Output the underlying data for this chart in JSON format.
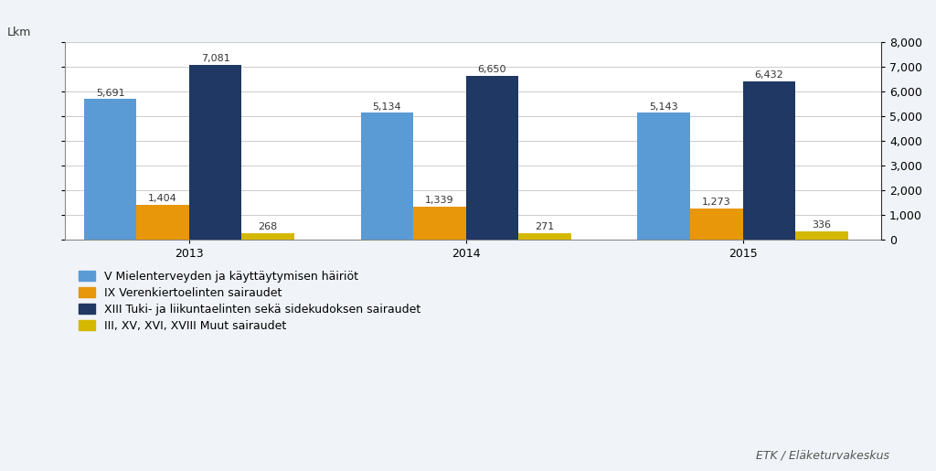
{
  "years": [
    "2013",
    "2014",
    "2015"
  ],
  "series": [
    {
      "label": "V Mielenterveyden ja käyttäytymisen häiriöt",
      "color": "#5B9BD5",
      "values": [
        5691,
        5134,
        5143
      ]
    },
    {
      "label": "IX Verenkiertoelinten sairaudet",
      "color": "#E8960A",
      "values": [
        1404,
        1339,
        1273
      ]
    },
    {
      "label": "XIII Tuki- ja liikuntaelinten sekä sidekudoksen sairaudet",
      "color": "#1F3864",
      "values": [
        7081,
        6650,
        6432
      ]
    },
    {
      "label": "III, XV, XVI, XVIII Muut sairaudet",
      "color": "#D4B800",
      "values": [
        268,
        271,
        336
      ]
    }
  ],
  "ylim": [
    0,
    8000
  ],
  "yticks": [
    0,
    1000,
    2000,
    3000,
    4000,
    5000,
    6000,
    7000,
    8000
  ],
  "ylabel_left": "Lkm",
  "bar_width": 0.19,
  "background_color": "#F0F4F8",
  "plot_bg_color": "#FFFFFF",
  "annotation_fontsize": 8,
  "legend_fontsize": 9,
  "axis_fontsize": 9,
  "source_text": "ETK / Eläketurvakeskus",
  "group_centers": [
    0.35,
    1.35,
    2.35
  ],
  "xlim": [
    -0.1,
    2.85
  ]
}
